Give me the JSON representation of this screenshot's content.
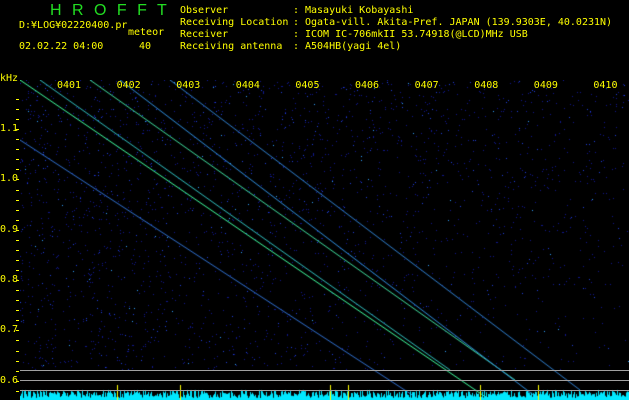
{
  "app": {
    "title": "H R O F F T"
  },
  "file": {
    "path": "D:¥LOG¥02220400.pr",
    "mode": "meteor",
    "datetime": "02.02.22 04:00",
    "count": "40"
  },
  "info": [
    {
      "label": "Observer",
      "value": "Masayuki Kobayashi"
    },
    {
      "label": "Receiving Location",
      "value": "Ogata-vill. Akita-Pref. JAPAN (139.9303E, 40.0231N)"
    },
    {
      "label": "Receiver",
      "value": "ICOM IC-706mkII 53.74918(@LCD)MHz USB"
    },
    {
      "label": "Receiving antenna",
      "value": "A504HB(yagi 4el)"
    }
  ],
  "axis": {
    "unit": "kHz",
    "time_ticks": [
      "0401",
      "0402",
      "0403",
      "0404",
      "0405",
      "0406",
      "0407",
      "0408",
      "0409",
      "0410"
    ],
    "freq_ticks": [
      "1.1",
      "1.0",
      "0.9",
      "0.8",
      "0.7",
      "0.6"
    ]
  },
  "colors": {
    "text": "#ffff00",
    "title": "#22dd22",
    "noise": "#1020c0",
    "trace": "#40ffa0",
    "baseline": "#00ffff"
  }
}
